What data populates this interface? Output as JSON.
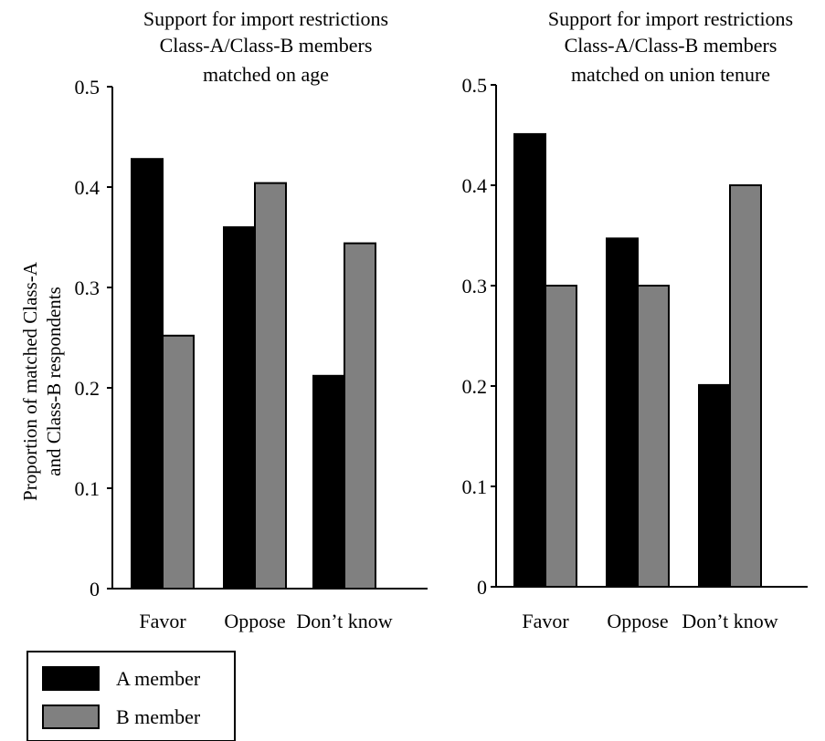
{
  "chart_data": [
    {
      "type": "bar",
      "title": [
        "Support for import restrictions",
        "Class-A/Class-B members",
        "matched on age"
      ],
      "ylabel": [
        "Proportion of matched Class-A",
        "and Class-B respondents"
      ],
      "xlabel": "",
      "ylim": [
        0,
        0.5
      ],
      "yticks": [
        "0",
        "0.1",
        "0.2",
        "0.3",
        "0.4",
        "0.5"
      ],
      "ytick_values": [
        0,
        0.1,
        0.2,
        0.3,
        0.4,
        0.5
      ],
      "categories": [
        "Favor",
        "Oppose",
        "Don’t know"
      ],
      "series": [
        {
          "name": "A member",
          "color": "#000000",
          "values": [
            0.428,
            0.36,
            0.212
          ]
        },
        {
          "name": "B member",
          "color": "#808080",
          "values": [
            0.252,
            0.404,
            0.344
          ]
        }
      ],
      "grid": false
    },
    {
      "type": "bar",
      "title": [
        "Support for import restrictions",
        "Class-A/Class-B members",
        "matched on union tenure"
      ],
      "ylabel": [],
      "xlabel": "",
      "ylim": [
        0,
        0.5
      ],
      "yticks": [
        "0",
        "0.1",
        "0.2",
        "0.3",
        "0.4",
        "0.5"
      ],
      "ytick_values": [
        0,
        0.1,
        0.2,
        0.3,
        0.4,
        0.5
      ],
      "categories": [
        "Favor",
        "Oppose",
        "Don’t know"
      ],
      "series": [
        {
          "name": "A member",
          "color": "#000000",
          "values": [
            0.451,
            0.347,
            0.201
          ]
        },
        {
          "name": "B member",
          "color": "#808080",
          "values": [
            0.3,
            0.3,
            0.4
          ]
        }
      ],
      "grid": false
    }
  ],
  "legend": {
    "placement": "bottom-left",
    "items": [
      {
        "label": "A member",
        "color": "#000000"
      },
      {
        "label": "B member",
        "color": "#808080"
      }
    ]
  }
}
